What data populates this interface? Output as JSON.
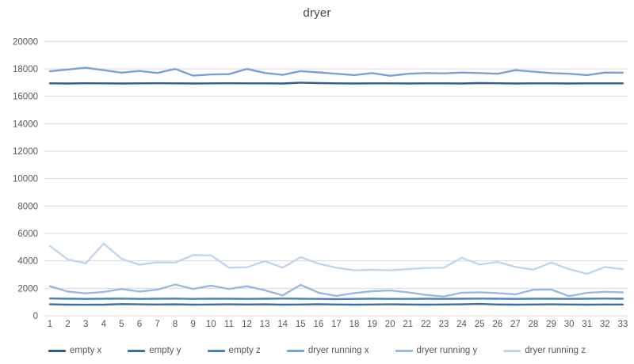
{
  "chart_data": {
    "type": "line",
    "title": "dryer",
    "x": [
      1,
      2,
      3,
      4,
      5,
      6,
      7,
      8,
      9,
      10,
      11,
      12,
      13,
      14,
      15,
      16,
      17,
      18,
      19,
      20,
      21,
      22,
      23,
      24,
      25,
      26,
      27,
      28,
      29,
      30,
      31,
      32,
      33
    ],
    "xlabel": "",
    "ylabel": "",
    "ylim": [
      0,
      20000
    ],
    "yticks": [
      0,
      2000,
      4000,
      6000,
      8000,
      10000,
      12000,
      14000,
      16000,
      18000,
      20000
    ],
    "grid": "horizontal",
    "legend_position": "bottom",
    "series": [
      {
        "name": "empty x",
        "color": "#2E5E8E",
        "values": [
          16940,
          16930,
          16950,
          16940,
          16930,
          16940,
          16950,
          16940,
          16930,
          16940,
          16950,
          16940,
          16940,
          16930,
          16990,
          16960,
          16940,
          16930,
          16940,
          16940,
          16930,
          16940,
          16940,
          16930,
          16960,
          16950,
          16930,
          16940,
          16940,
          16930,
          16940,
          16940,
          16940
        ]
      },
      {
        "name": "empty y",
        "color": "#3A70A8",
        "values": [
          830,
          810,
          800,
          810,
          850,
          830,
          820,
          830,
          810,
          820,
          830,
          820,
          830,
          810,
          820,
          840,
          820,
          810,
          820,
          830,
          820,
          810,
          820,
          830,
          860,
          820,
          810,
          820,
          830,
          820,
          810,
          820,
          820
        ]
      },
      {
        "name": "empty z",
        "color": "#4A82BE",
        "values": [
          1260,
          1240,
          1230,
          1240,
          1250,
          1230,
          1240,
          1250,
          1230,
          1240,
          1240,
          1230,
          1240,
          1250,
          1240,
          1230,
          1220,
          1230,
          1240,
          1230,
          1230,
          1240,
          1230,
          1240,
          1250,
          1240,
          1230,
          1240,
          1240,
          1230,
          1240,
          1250,
          1240
        ]
      },
      {
        "name": "dryer running x",
        "color": "#78A2D4",
        "values": [
          17820,
          17950,
          18080,
          17900,
          17720,
          17840,
          17700,
          17990,
          17500,
          17590,
          17610,
          17990,
          17700,
          17560,
          17830,
          17740,
          17640,
          17540,
          17690,
          17490,
          17640,
          17690,
          17670,
          17730,
          17690,
          17640,
          17900,
          17790,
          17690,
          17640,
          17540,
          17730,
          17720
        ]
      },
      {
        "name": "dryer running y",
        "color": "#9BB9E0",
        "values": [
          2150,
          1760,
          1630,
          1730,
          1950,
          1760,
          1900,
          2280,
          1950,
          2200,
          1950,
          2150,
          1860,
          1480,
          2250,
          1680,
          1450,
          1650,
          1790,
          1840,
          1710,
          1520,
          1400,
          1680,
          1710,
          1650,
          1560,
          1890,
          1910,
          1430,
          1670,
          1740,
          1700
        ]
      },
      {
        "name": "dryer running z",
        "color": "#C3D5EC",
        "values": [
          5080,
          4100,
          3820,
          5260,
          4150,
          3720,
          3900,
          3870,
          4420,
          4400,
          3500,
          3530,
          3980,
          3500,
          4270,
          3790,
          3500,
          3310,
          3350,
          3310,
          3400,
          3480,
          3500,
          4230,
          3730,
          3920,
          3560,
          3360,
          3880,
          3400,
          3060,
          3550,
          3400
        ]
      }
    ],
    "styles": {
      "grid_color": "#D9D9D9",
      "axis_text_color": "#595959",
      "title_color": "#474747",
      "background": "#FFFFFF"
    }
  }
}
